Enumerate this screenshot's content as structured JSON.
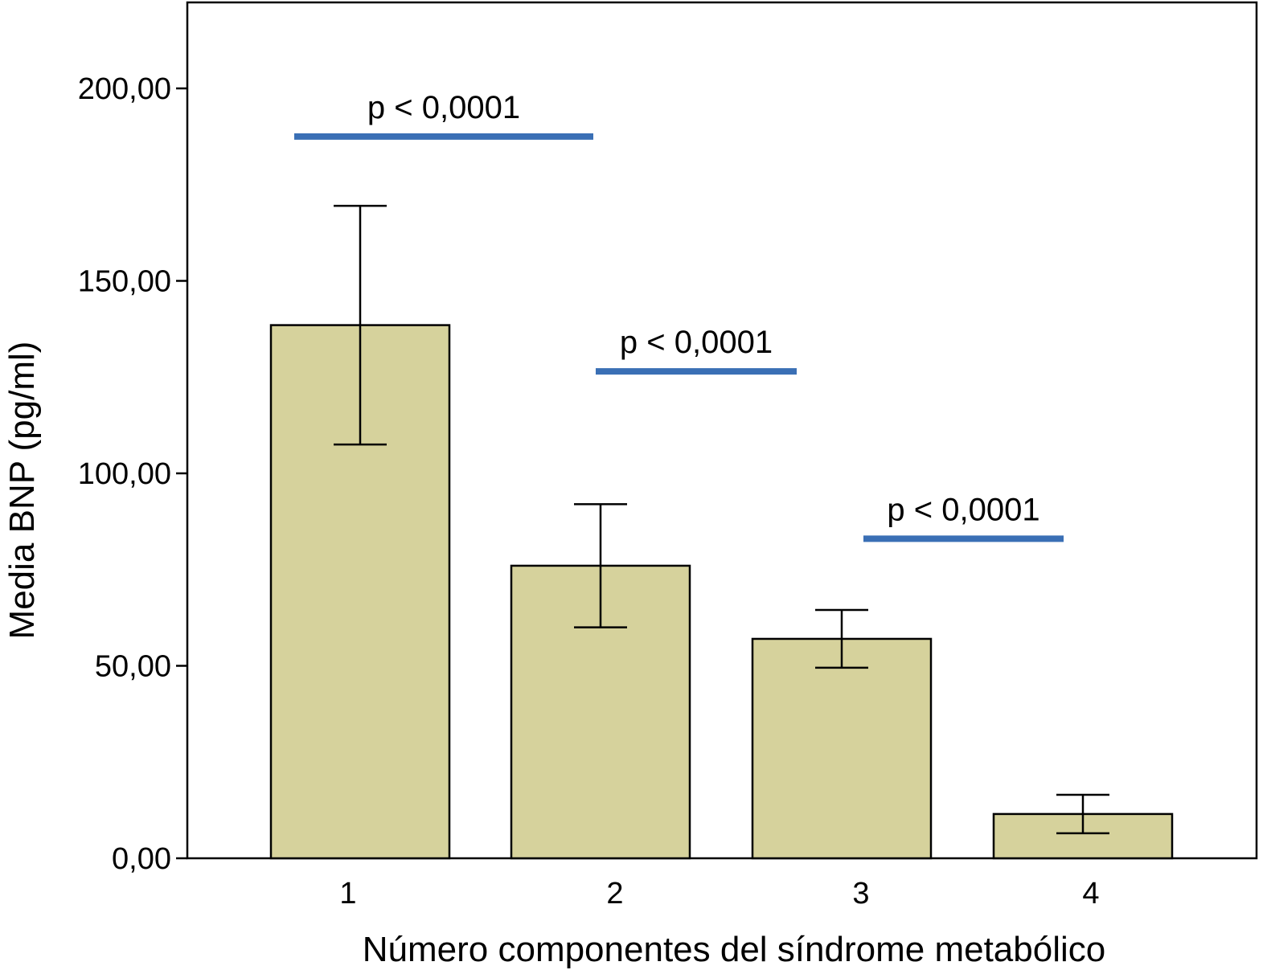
{
  "chart_data": {
    "type": "bar",
    "title": "",
    "xlabel": "Número componentes del síndrome metabólico",
    "ylabel": "Media BNP (pg/ml)",
    "categories": [
      "1",
      "2",
      "3",
      "4"
    ],
    "values": [
      138.5,
      76.0,
      57.0,
      11.5
    ],
    "error_bars": [
      {
        "low": 107.5,
        "high": 169.5
      },
      {
        "low": 60.0,
        "high": 92.0
      },
      {
        "low": 49.5,
        "high": 64.5
      },
      {
        "low": 6.5,
        "high": 16.5
      }
    ],
    "y_ticks": [
      0,
      50,
      100,
      150,
      200
    ],
    "y_tick_labels": [
      "0,00",
      "50,00",
      "100,00",
      "150,00",
      "200,00"
    ],
    "ylim": [
      0,
      222
    ],
    "grid": false,
    "significance": [
      {
        "label": "p < 0,0001",
        "from": 1,
        "to": 2,
        "y": 187.5
      },
      {
        "label": "p < 0,0001",
        "from": 2,
        "to": 3,
        "y": 126.5
      },
      {
        "label": "p < 0,0001",
        "from": 3,
        "to": 4,
        "y": 83.0
      }
    ],
    "colors": {
      "bar_fill": "#d6d29c",
      "bar_stroke": "#000000",
      "significance_line": "#3a6fb5",
      "axis": "#000000"
    }
  }
}
